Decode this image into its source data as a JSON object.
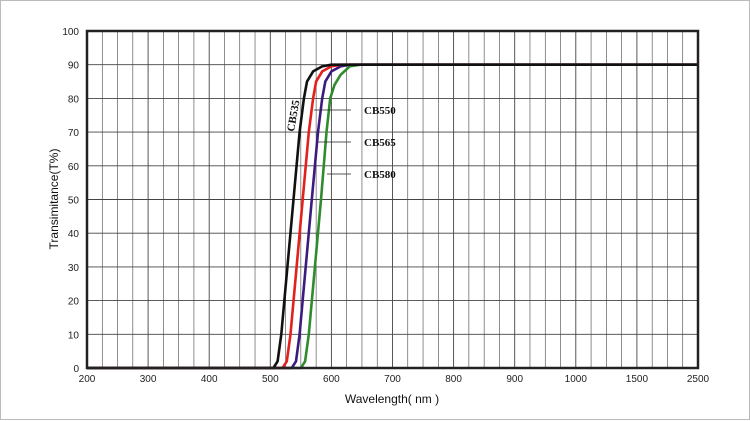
{
  "chart_data": {
    "type": "line",
    "title": "",
    "xlabel": "Wavelength( nm )",
    "ylabel": "Transimitance(T%)",
    "x_ticks": [
      200,
      300,
      400,
      500,
      600,
      700,
      800,
      900,
      1000,
      1500,
      2500
    ],
    "x_tick_labels": [
      "200",
      "300",
      "400",
      "500",
      "600",
      "700",
      "800",
      "900",
      "1000",
      "1500",
      "2500"
    ],
    "y_ticks": [
      0,
      10,
      20,
      30,
      40,
      50,
      60,
      70,
      80,
      90,
      100
    ],
    "y_tick_labels": [
      "0",
      "10",
      "20",
      "30",
      "40",
      "50",
      "60",
      "70",
      "80",
      "90",
      "100"
    ],
    "ylim": [
      0,
      100
    ],
    "xlim": [
      200,
      2500
    ],
    "x_scale": "piecewise (tick labels equally spaced)",
    "grid": true,
    "series": [
      {
        "name": "CB535",
        "color": "#111111",
        "points": [
          [
            200,
            0
          ],
          [
            505,
            0
          ],
          [
            512,
            2
          ],
          [
            518,
            10
          ],
          [
            528,
            30
          ],
          [
            538,
            50
          ],
          [
            548,
            70
          ],
          [
            555,
            80
          ],
          [
            560,
            85
          ],
          [
            570,
            88
          ],
          [
            585,
            89.5
          ],
          [
            600,
            90
          ],
          [
            2500,
            90
          ]
        ]
      },
      {
        "name": "CB550",
        "color": "#e3201b",
        "points": [
          [
            200,
            0
          ],
          [
            520,
            0
          ],
          [
            527,
            2
          ],
          [
            533,
            10
          ],
          [
            543,
            30
          ],
          [
            553,
            50
          ],
          [
            563,
            70
          ],
          [
            570,
            80
          ],
          [
            575,
            85
          ],
          [
            585,
            88
          ],
          [
            600,
            89.5
          ],
          [
            615,
            90
          ],
          [
            2500,
            90
          ]
        ]
      },
      {
        "name": "CB565",
        "color": "#3b1c7e",
        "points": [
          [
            200,
            0
          ],
          [
            535,
            0
          ],
          [
            542,
            2
          ],
          [
            548,
            10
          ],
          [
            558,
            30
          ],
          [
            568,
            50
          ],
          [
            578,
            70
          ],
          [
            585,
            80
          ],
          [
            590,
            85
          ],
          [
            600,
            88
          ],
          [
            615,
            89.5
          ],
          [
            630,
            90
          ],
          [
            2500,
            90
          ]
        ]
      },
      {
        "name": "CB580",
        "color": "#2e8b2e",
        "points": [
          [
            200,
            0
          ],
          [
            550,
            0
          ],
          [
            557,
            2
          ],
          [
            563,
            10
          ],
          [
            573,
            30
          ],
          [
            583,
            50
          ],
          [
            592,
            70
          ],
          [
            598,
            80
          ],
          [
            605,
            84
          ],
          [
            615,
            87
          ],
          [
            630,
            89.5
          ],
          [
            647,
            90
          ],
          [
            2500,
            90
          ]
        ]
      }
    ],
    "annotations": [
      "CB535",
      "CB550",
      "CB565",
      "CB580"
    ]
  }
}
